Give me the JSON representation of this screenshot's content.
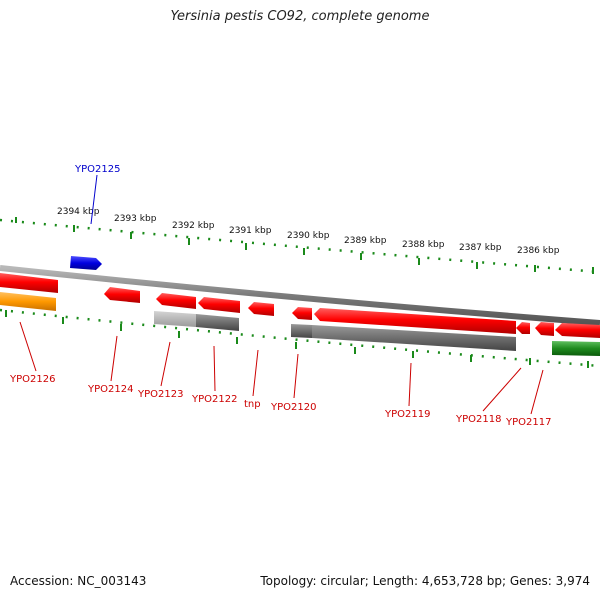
{
  "title": "Yersinia pestis CO92, complete genome",
  "footer": {
    "accession": "Accession: NC_003143",
    "topology": "Topology: circular; Length: 4,653,728 bp; Genes: 3,974"
  },
  "scale_labels": [
    "2394 kbp",
    "2393 kbp",
    "2392 kbp",
    "2391 kbp",
    "2390 kbp",
    "2389 kbp",
    "2388 kbp",
    "2387 kbp",
    "2386 kbp"
  ],
  "gene_labels": {
    "ypo2125": "YPO2125",
    "ypo2126": "YPO2126",
    "ypo2124": "YPO2124",
    "ypo2123": "YPO2123",
    "ypo2122": "YPO2122",
    "tnp": "tnp",
    "ypo2120": "YPO2120",
    "ypo2119": "YPO2119",
    "ypo2118": "YPO2118",
    "ypo2117": "YPO2117"
  },
  "colors": {
    "forward_gene": "#0000e0",
    "cds": "#ff0000",
    "gene_bar": "#6e6e6e",
    "gene_bar_light": "#b4b4b4",
    "orange_feature": "#ff9900",
    "green_feature": "#1e8a1e",
    "tick": "#1a8a1a",
    "backbone": "#8a8a8a"
  }
}
